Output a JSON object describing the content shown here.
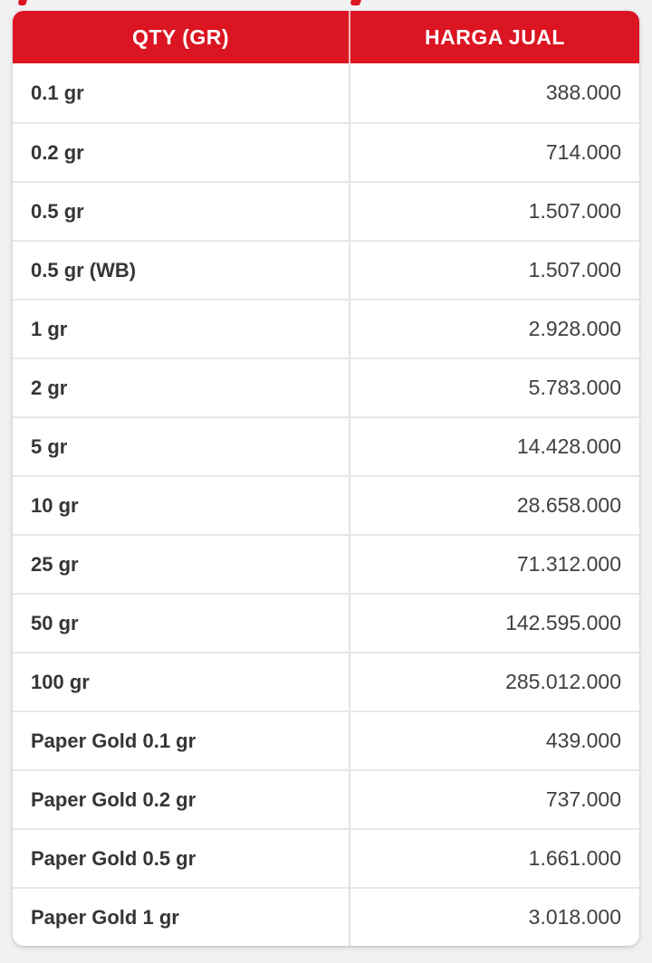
{
  "colors": {
    "header_red": "#dc1522",
    "page_background": "#f1f1f3",
    "card_background": "#ffffff",
    "qty_text": "#353535",
    "price_text": "#404040"
  },
  "table": {
    "header": {
      "qty_label": "QTY (GR)",
      "price_label": "HARGA JUAL"
    },
    "rows": [
      {
        "qty": "0.1 gr",
        "price": "388.000"
      },
      {
        "qty": "0.2 gr",
        "price": "714.000"
      },
      {
        "qty": "0.5 gr",
        "price": "1.507.000"
      },
      {
        "qty": "0.5 gr (WB)",
        "price": "1.507.000"
      },
      {
        "qty": "1 gr",
        "price": "2.928.000"
      },
      {
        "qty": "2 gr",
        "price": "5.783.000"
      },
      {
        "qty": "5 gr",
        "price": "14.428.000"
      },
      {
        "qty": "10 gr",
        "price": "28.658.000"
      },
      {
        "qty": "25 gr",
        "price": "71.312.000"
      },
      {
        "qty": "50 gr",
        "price": "142.595.000"
      },
      {
        "qty": "100 gr",
        "price": "285.012.000"
      },
      {
        "qty": "Paper Gold 0.1 gr",
        "price": "439.000"
      },
      {
        "qty": "Paper Gold 0.2 gr",
        "price": "737.000"
      },
      {
        "qty": "Paper Gold 0.5 gr",
        "price": "1.661.000"
      },
      {
        "qty": "Paper Gold 1 gr",
        "price": "3.018.000"
      }
    ]
  }
}
